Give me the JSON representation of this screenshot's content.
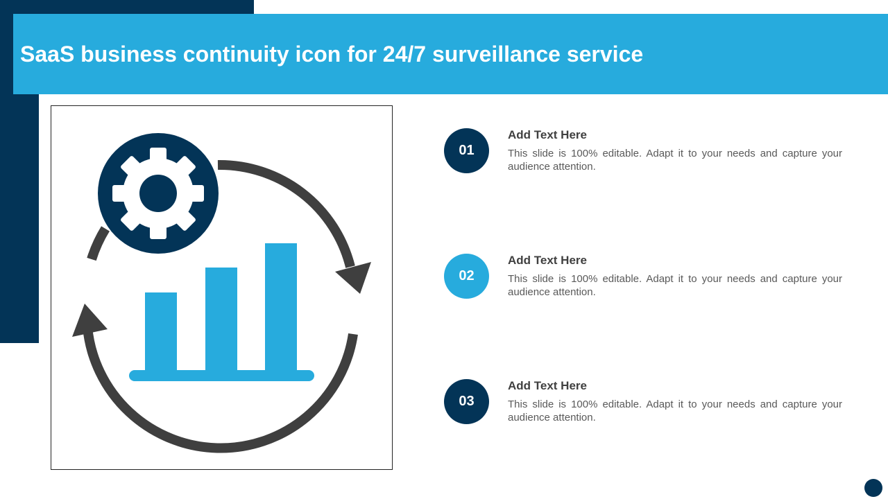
{
  "slide": {
    "title": "SaaS business continuity icon for 24/7 surveillance service"
  },
  "colors": {
    "navy": "#033457",
    "blue": "#27abdd",
    "arrow_gray": "#3f3f3f",
    "gear_white": "#ffffff"
  },
  "icon": {
    "semantic_name": "saas-continuity-icon",
    "parts": [
      "gear-icon",
      "cycle-arrows-icon",
      "bar-chart-icon"
    ]
  },
  "items": [
    {
      "number": "01",
      "heading": "Add Text Here",
      "body": "This slide is 100% editable. Adapt it to your  needs and capture your audience attention.",
      "badge_color": "#033457"
    },
    {
      "number": "02",
      "heading": "Add Text Here",
      "body": "This slide is 100% editable. Adapt it to your  needs and capture your audience attention.",
      "badge_color": "#27abdd"
    },
    {
      "number": "03",
      "heading": "Add Text Here",
      "body": "This slide is 100% editable. Adapt it to your  needs and capture your audience attention.",
      "badge_color": "#033457"
    }
  ]
}
